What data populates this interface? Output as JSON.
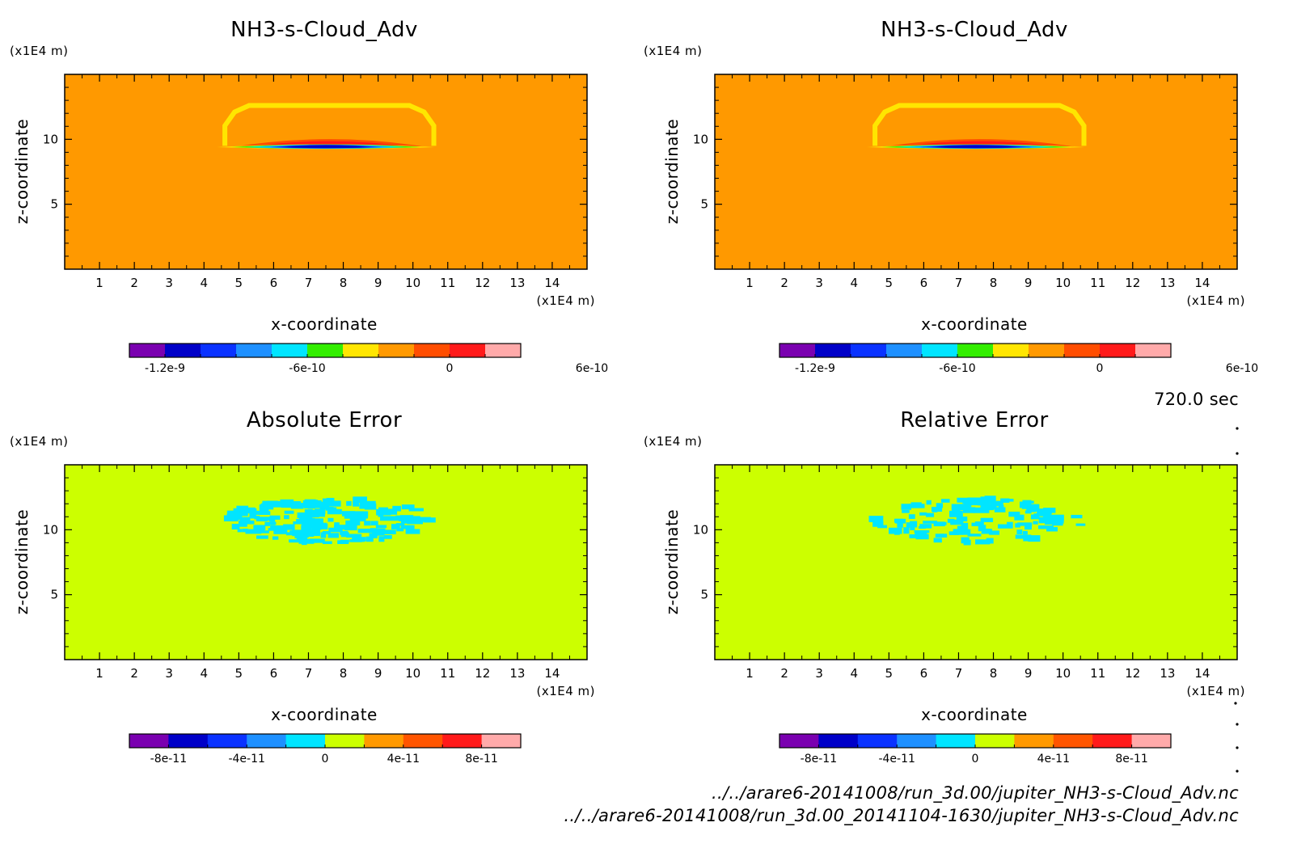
{
  "chart_data": [
    {
      "type": "heatmap",
      "panel": "top-left",
      "title": "NH3-s-Cloud_Adv",
      "xlabel": "x-coordinate",
      "ylabel": "z-coordinate",
      "x_unit": "(x1E4 m)",
      "y_unit": "(x1E4 m)",
      "xlim": [
        0,
        15
      ],
      "ylim": [
        0,
        15
      ],
      "x_ticks": [
        1,
        2,
        3,
        4,
        5,
        6,
        7,
        8,
        9,
        10,
        11,
        12,
        13,
        14
      ],
      "y_ticks": [
        5,
        10
      ],
      "background_value": 0,
      "colorbar": {
        "levels": 10,
        "colors": [
          "#7a00b0",
          "#0000c8",
          "#0a32ff",
          "#1e90ff",
          "#00e5ff",
          "#33ee00",
          "#ffe600",
          "#ff9900",
          "#ff4d00",
          "#ff1a1a",
          "#ffaaaa"
        ],
        "tick_labels": [
          "-1.2e-9",
          "-6e-10",
          "0",
          "6e-10"
        ],
        "tick_values": [
          -1.2e-09,
          -6e-10,
          0,
          6e-10
        ]
      },
      "features": [
        {
          "kind": "outline",
          "value": "positive small",
          "x_range": [
            4.6,
            10.6
          ],
          "z_range": [
            9.5,
            12.6
          ]
        },
        {
          "kind": "layer",
          "value": "positive",
          "x_range": [
            4.8,
            10.4
          ],
          "z_range": [
            9.4,
            10.0
          ]
        },
        {
          "kind": "minimum",
          "value": -1.2e-09,
          "x_range": [
            6.0,
            9.0
          ],
          "z_range": [
            9.4,
            9.7
          ]
        }
      ]
    },
    {
      "type": "heatmap",
      "panel": "top-right",
      "title": "NH3-s-Cloud_Adv",
      "xlabel": "x-coordinate",
      "ylabel": "z-coordinate",
      "x_unit": "(x1E4 m)",
      "y_unit": "(x1E4 m)",
      "xlim": [
        0,
        15
      ],
      "ylim": [
        0,
        15
      ],
      "x_ticks": [
        1,
        2,
        3,
        4,
        5,
        6,
        7,
        8,
        9,
        10,
        11,
        12,
        13,
        14
      ],
      "y_ticks": [
        5,
        10
      ],
      "background_value": 0,
      "colorbar": {
        "levels": 10,
        "colors": [
          "#7a00b0",
          "#0000c8",
          "#0a32ff",
          "#1e90ff",
          "#00e5ff",
          "#33ee00",
          "#ffe600",
          "#ff9900",
          "#ff4d00",
          "#ff1a1a",
          "#ffaaaa"
        ],
        "tick_labels": [
          "-1.2e-9",
          "-6e-10",
          "0",
          "6e-10"
        ],
        "tick_values": [
          -1.2e-09,
          -6e-10,
          0,
          6e-10
        ]
      },
      "features": [
        {
          "kind": "outline",
          "value": "positive small",
          "x_range": [
            4.6,
            10.6
          ],
          "z_range": [
            9.5,
            12.6
          ]
        },
        {
          "kind": "layer",
          "value": "positive",
          "x_range": [
            4.8,
            10.4
          ],
          "z_range": [
            9.4,
            10.0
          ]
        },
        {
          "kind": "minimum",
          "value": -1.2e-09,
          "x_range": [
            6.0,
            9.0
          ],
          "z_range": [
            9.4,
            9.7
          ]
        }
      ]
    },
    {
      "type": "heatmap",
      "panel": "bottom-left",
      "title": "Absolute Error",
      "xlabel": "x-coordinate",
      "ylabel": "z-coordinate",
      "x_unit": "(x1E4 m)",
      "y_unit": "(x1E4 m)",
      "xlim": [
        0,
        15
      ],
      "ylim": [
        0,
        15
      ],
      "x_ticks": [
        1,
        2,
        3,
        4,
        5,
        6,
        7,
        8,
        9,
        10,
        11,
        12,
        13,
        14
      ],
      "y_ticks": [
        5,
        10
      ],
      "background_value": 0,
      "colorbar": {
        "levels": 10,
        "colors": [
          "#7a00b0",
          "#0000c8",
          "#0a32ff",
          "#1e90ff",
          "#00e5ff",
          "#ccff00",
          "#ff9900",
          "#ff5500",
          "#ff1a1a",
          "#ffaaaa"
        ],
        "tick_labels": [
          "-8e-11",
          "-4e-11",
          "0",
          "4e-11",
          "8e-11"
        ],
        "tick_values": [
          -8e-11,
          -4e-11,
          0,
          4e-11,
          8e-11
        ]
      },
      "features": [
        {
          "kind": "speckle",
          "value": "slightly negative",
          "x_range": [
            4.6,
            10.6
          ],
          "z_range": [
            9.0,
            12.4
          ]
        }
      ]
    },
    {
      "type": "heatmap",
      "panel": "bottom-right",
      "title": "Relative Error",
      "xlabel": "x-coordinate",
      "ylabel": "z-coordinate",
      "x_unit": "(x1E4 m)",
      "y_unit": "(x1E4 m)",
      "xlim": [
        0,
        15
      ],
      "ylim": [
        0,
        15
      ],
      "x_ticks": [
        1,
        2,
        3,
        4,
        5,
        6,
        7,
        8,
        9,
        10,
        11,
        12,
        13,
        14
      ],
      "y_ticks": [
        5,
        10
      ],
      "background_value": 0,
      "colorbar": {
        "levels": 10,
        "colors": [
          "#7a00b0",
          "#0000c8",
          "#0a32ff",
          "#1e90ff",
          "#00e5ff",
          "#ccff00",
          "#ff9900",
          "#ff5500",
          "#ff1a1a",
          "#ffaaaa"
        ],
        "tick_labels": [
          "-8e-11",
          "-4e-11",
          "0",
          "4e-11",
          "8e-11"
        ],
        "tick_values": [
          -8e-11,
          -4e-11,
          0,
          4e-11,
          8e-11
        ]
      },
      "features": [
        {
          "kind": "speckle",
          "value": "slightly negative",
          "x_range": [
            4.6,
            10.6
          ],
          "z_range": [
            9.0,
            12.4
          ]
        }
      ]
    }
  ],
  "time_label": "720.0 sec",
  "files": [
    "../../arare6-20141008/run_3d.00/jupiter_NH3-s-Cloud_Adv.nc",
    "../../arare6-20141008/run_3d.00_20141104-1630/jupiter_NH3-s-Cloud_Adv.nc"
  ]
}
